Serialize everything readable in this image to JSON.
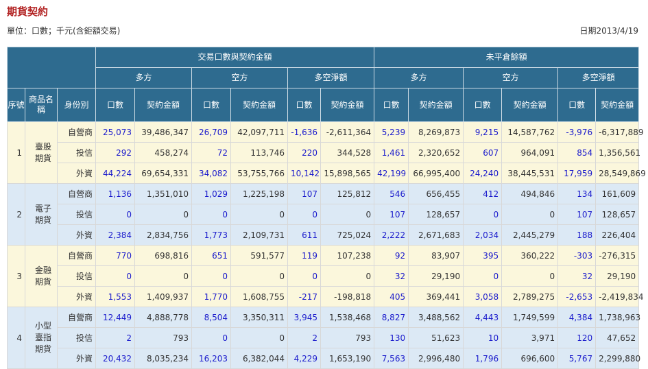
{
  "page": {
    "title": "期貨契約",
    "unit": "單位：口數；千元(含鉅額交易)",
    "date": "日期2013/4/19"
  },
  "header": {
    "group_trade": "交易口數與契約金額",
    "group_oi": "未平倉餘額",
    "long": "多方",
    "short": "空方",
    "net": "多空淨額",
    "seq": "序號",
    "product": "商品名稱",
    "identity": "身份別",
    "qty": "口數",
    "amount": "契約金額"
  },
  "rows": [
    {
      "seq": "1",
      "product": "臺股期貨",
      "entries": [
        {
          "id": "自營商",
          "v": [
            "25,073",
            "39,486,347",
            "26,709",
            "42,097,711",
            "-1,636",
            "-2,611,364",
            "5,239",
            "8,269,873",
            "9,215",
            "14,587,762",
            "-3,976",
            "-6,317,889"
          ]
        },
        {
          "id": "投信",
          "v": [
            "292",
            "458,274",
            "72",
            "113,746",
            "220",
            "344,528",
            "1,461",
            "2,320,652",
            "607",
            "964,091",
            "854",
            "1,356,561"
          ]
        },
        {
          "id": "外資",
          "v": [
            "44,224",
            "69,654,331",
            "34,082",
            "53,755,766",
            "10,142",
            "15,898,565",
            "42,199",
            "66,995,400",
            "24,240",
            "38,445,531",
            "17,959",
            "28,549,869"
          ]
        }
      ]
    },
    {
      "seq": "2",
      "product": "電子期貨",
      "entries": [
        {
          "id": "自營商",
          "v": [
            "1,136",
            "1,351,010",
            "1,029",
            "1,225,198",
            "107",
            "125,812",
            "546",
            "656,455",
            "412",
            "494,846",
            "134",
            "161,609"
          ]
        },
        {
          "id": "投信",
          "v": [
            "0",
            "0",
            "0",
            "0",
            "0",
            "0",
            "107",
            "128,657",
            "0",
            "0",
            "107",
            "128,657"
          ]
        },
        {
          "id": "外資",
          "v": [
            "2,384",
            "2,834,756",
            "1,773",
            "2,109,731",
            "611",
            "725,024",
            "2,222",
            "2,671,683",
            "2,034",
            "2,445,279",
            "188",
            "226,404"
          ]
        }
      ]
    },
    {
      "seq": "3",
      "product": "金融期貨",
      "entries": [
        {
          "id": "自營商",
          "v": [
            "770",
            "698,816",
            "651",
            "591,577",
            "119",
            "107,238",
            "92",
            "83,907",
            "395",
            "360,222",
            "-303",
            "-276,315"
          ]
        },
        {
          "id": "投信",
          "v": [
            "0",
            "0",
            "0",
            "0",
            "0",
            "0",
            "32",
            "29,190",
            "0",
            "0",
            "32",
            "29,190"
          ]
        },
        {
          "id": "外資",
          "v": [
            "1,553",
            "1,409,937",
            "1,770",
            "1,608,755",
            "-217",
            "-198,818",
            "405",
            "369,441",
            "3,058",
            "2,789,275",
            "-2,653",
            "-2,419,834"
          ]
        }
      ]
    },
    {
      "seq": "4",
      "product": "小型臺指期貨",
      "entries": [
        {
          "id": "自營商",
          "v": [
            "12,449",
            "4,888,778",
            "8,504",
            "3,350,311",
            "3,945",
            "1,538,468",
            "8,827",
            "3,488,562",
            "4,443",
            "1,749,599",
            "4,384",
            "1,738,963"
          ]
        },
        {
          "id": "投信",
          "v": [
            "2",
            "793",
            "0",
            "0",
            "2",
            "793",
            "130",
            "51,623",
            "10",
            "3,971",
            "120",
            "47,652"
          ]
        },
        {
          "id": "外資",
          "v": [
            "20,432",
            "8,035,234",
            "16,203",
            "6,382,044",
            "4,229",
            "1,653,190",
            "7,563",
            "2,996,480",
            "1,796",
            "696,600",
            "5,767",
            "2,299,880"
          ]
        }
      ]
    }
  ],
  "colors": {
    "header_bg": "#2e6b8f",
    "row_a": "#fbf7dc",
    "row_b": "#dce9f5",
    "qty_text": "#1a1acc",
    "title": "#b22222"
  }
}
